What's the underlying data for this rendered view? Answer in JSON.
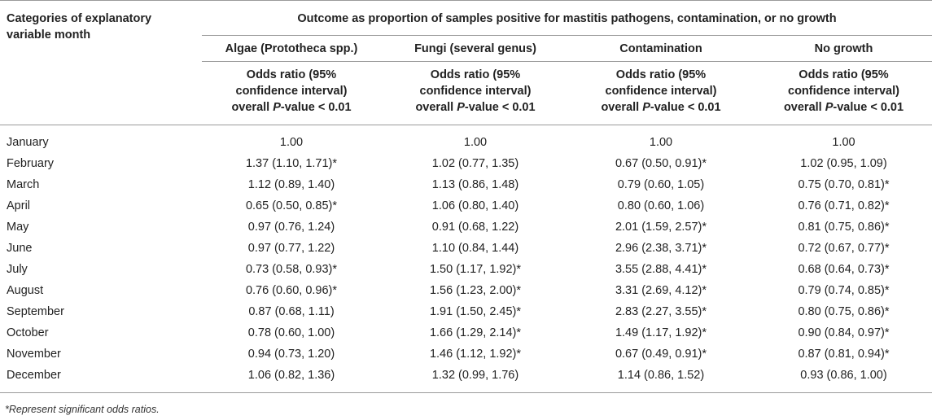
{
  "header": {
    "row_label_line1": "Categories of explanatory",
    "row_label_line2": "variable month",
    "outcome_title": "Outcome as proportion of samples positive for mastitis pathogens, contamination, or no growth",
    "columns": [
      "Algae (Prototheca spp.)",
      "Fungi (several genus)",
      "Contamination",
      "No growth"
    ],
    "sub_line1": "Odds ratio (95%",
    "sub_line2": "confidence interval)",
    "sub_line3_pre": "overall ",
    "sub_line3_p": "P",
    "sub_line3_post": "-value < 0.01"
  },
  "rows": [
    {
      "month": "January",
      "algae": "1.00",
      "fungi": "1.00",
      "contamination": "1.00",
      "no_growth": "1.00"
    },
    {
      "month": "February",
      "algae": "1.37 (1.10, 1.71)*",
      "fungi": "1.02 (0.77, 1.35)",
      "contamination": "0.67 (0.50, 0.91)*",
      "no_growth": "1.02 (0.95, 1.09)"
    },
    {
      "month": "March",
      "algae": "1.12 (0.89, 1.40)",
      "fungi": "1.13 (0.86, 1.48)",
      "contamination": "0.79 (0.60, 1.05)",
      "no_growth": "0.75 (0.70, 0.81)*"
    },
    {
      "month": "April",
      "algae": "0.65 (0.50, 0.85)*",
      "fungi": "1.06 (0.80, 1.40)",
      "contamination": "0.80 (0.60, 1.06)",
      "no_growth": "0.76 (0.71, 0.82)*"
    },
    {
      "month": "May",
      "algae": "0.97 (0.76, 1.24)",
      "fungi": "0.91 (0.68, 1.22)",
      "contamination": "2.01 (1.59, 2.57)*",
      "no_growth": "0.81 (0.75, 0.86)*"
    },
    {
      "month": "June",
      "algae": "0.97 (0.77, 1.22)",
      "fungi": "1.10 (0.84, 1.44)",
      "contamination": "2.96 (2.38, 3.71)*",
      "no_growth": "0.72 (0.67, 0.77)*"
    },
    {
      "month": "July",
      "algae": "0.73 (0.58, 0.93)*",
      "fungi": "1.50 (1.17, 1.92)*",
      "contamination": "3.55 (2.88, 4.41)*",
      "no_growth": "0.68 (0.64, 0.73)*"
    },
    {
      "month": "August",
      "algae": "0.76 (0.60, 0.96)*",
      "fungi": "1.56 (1.23, 2.00)*",
      "contamination": "3.31 (2.69, 4.12)*",
      "no_growth": "0.79 (0.74, 0.85)*"
    },
    {
      "month": "September",
      "algae": "0.87 (0.68, 1.11)",
      "fungi": "1.91 (1.50, 2.45)*",
      "contamination": "2.83 (2.27, 3.55)*",
      "no_growth": "0.80 (0.75, 0.86)*"
    },
    {
      "month": "October",
      "algae": "0.78 (0.60, 1.00)",
      "fungi": "1.66 (1.29, 2.14)*",
      "contamination": "1.49 (1.17, 1.92)*",
      "no_growth": "0.90 (0.84, 0.97)*"
    },
    {
      "month": "November",
      "algae": "0.94 (0.73, 1.20)",
      "fungi": "1.46 (1.12, 1.92)*",
      "contamination": "0.67 (0.49, 0.91)*",
      "no_growth": "0.87 (0.81, 0.94)*"
    },
    {
      "month": "December",
      "algae": "1.06 (0.82, 1.36)",
      "fungi": "1.32 (0.99, 1.76)",
      "contamination": "1.14 (0.86, 1.52)",
      "no_growth": "0.93 (0.86, 1.00)"
    }
  ],
  "footnote": "*Represent significant odds ratios."
}
